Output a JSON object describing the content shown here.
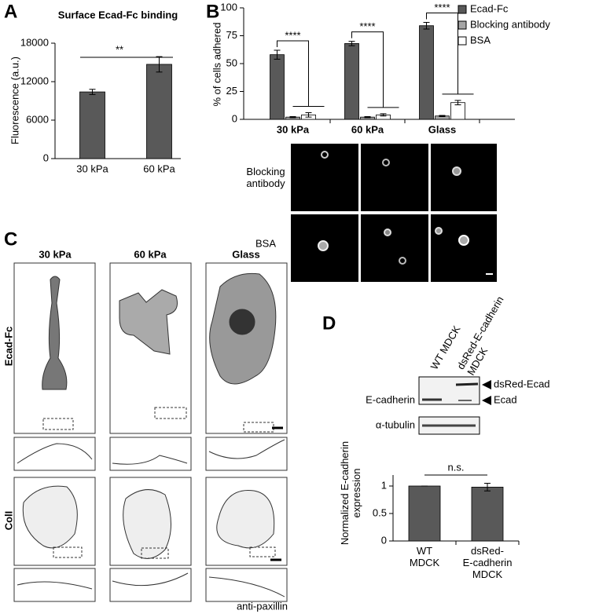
{
  "figure": {
    "panel_labels": [
      "A",
      "B",
      "C",
      "D"
    ],
    "b_rows": [
      "Blocking\nantibody",
      "BSA"
    ],
    "c_columns": [
      "30 kPa",
      "60 kPa",
      "Glass"
    ],
    "c_rows": [
      "Ecad-Fc",
      "ColI"
    ],
    "c_stain": "anti-paxillin",
    "d_lanes": [
      "WT MDCK",
      "dsRed-E-cadherin\nMDCK"
    ],
    "d_blots": [
      "E-cadherin",
      "α-tubulin"
    ],
    "d_bands": [
      "dsRed-Ecad",
      "Ecad"
    ]
  },
  "chart_data": [
    {
      "type": "bar",
      "title": "Surface Ecad-Fc binding",
      "y_label": "Fluorescence (a.u.)",
      "categories": [
        "30 kPa",
        "60 kPa"
      ],
      "values": [
        10400,
        14700
      ],
      "errors": [
        400,
        1200
      ],
      "color": "#595959",
      "ylim": [
        0,
        18000
      ],
      "yticks": [
        0,
        6000,
        12000,
        18000
      ],
      "annotations": [
        "**"
      ]
    },
    {
      "type": "bar",
      "y_label": "% of cells adhered",
      "categories": [
        "30 kPa",
        "60 kPa",
        "Glass"
      ],
      "series": [
        {
          "name": "Ecad-Fc",
          "color": "#595959",
          "values": [
            58,
            68,
            84
          ],
          "errors": [
            4,
            2,
            3
          ]
        },
        {
          "name": "Blocking antibody",
          "color": "#a6a6a6",
          "values": [
            2,
            2,
            3
          ],
          "errors": [
            0.5,
            0.5,
            0.5
          ]
        },
        {
          "name": "BSA",
          "color": "#ffffff",
          "values": [
            4,
            4,
            15
          ],
          "errors": [
            2,
            1,
            2
          ]
        }
      ],
      "ylim": [
        0,
        100
      ],
      "yticks": [
        0,
        25,
        50,
        75,
        100
      ],
      "annotations": [
        "****",
        "****",
        "****"
      ]
    },
    {
      "type": "bar",
      "y_label": "Normalized E-cadherin\nexpression",
      "categories": [
        "WT\nMDCK",
        "dsRed-\nE-cadherin\nMDCK"
      ],
      "values": [
        1,
        0.98
      ],
      "errors": [
        0,
        0.07
      ],
      "color": "#595959",
      "ylim": [
        0,
        1.2
      ],
      "yticks": [
        0,
        0.5,
        1
      ],
      "annotations": [
        "n.s."
      ]
    }
  ]
}
